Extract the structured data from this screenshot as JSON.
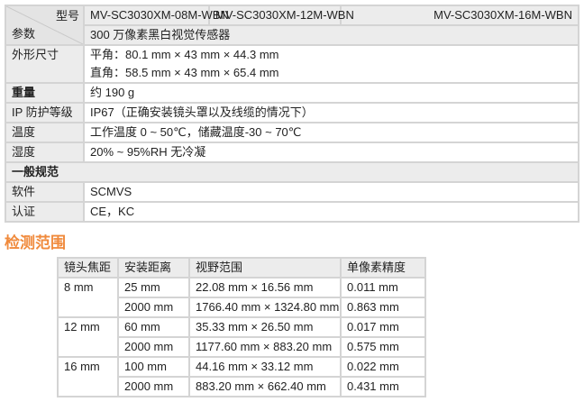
{
  "spec": {
    "param_label": "参数",
    "model_label": "型号",
    "models": [
      "MV-SC3030XM-08M-WBN",
      "MV-SC3030XM-12M-WBN",
      "MV-SC3030XM-16M-WBN"
    ],
    "sensor": "300 万像素黑白视觉传感器",
    "rows": [
      {
        "label": "外形尺寸",
        "lines": [
          "平角：80.1 mm × 43 mm × 44.3 mm",
          "直角：58.5 mm × 43 mm × 65.4 mm"
        ]
      },
      {
        "label": "重量",
        "value": "约 190 g"
      },
      {
        "label": "IP 防护等级",
        "value": "IP67（正确安装镜头罩以及线缆的情况下）"
      },
      {
        "label": "温度",
        "value": "工作温度 0 ~ 50℃，储藏温度-30 ~ 70℃"
      },
      {
        "label": "湿度",
        "value": "20% ~ 95%RH 无冷凝"
      }
    ],
    "section": "一般规范",
    "rows2": [
      {
        "label": "软件",
        "value": "SCMVS"
      },
      {
        "label": "认证",
        "value": "CE，KC"
      }
    ]
  },
  "range": {
    "title": "检测范围",
    "headers": [
      "镜头焦距",
      "安装距离",
      "视野范围",
      "单像素精度"
    ],
    "groups": [
      {
        "focal": "8 mm",
        "rows": [
          [
            "25 mm",
            "22.08 mm × 16.56 mm",
            "0.011 mm"
          ],
          [
            "2000 mm",
            "1766.40 mm × 1324.80 mm",
            "0.863 mm"
          ]
        ]
      },
      {
        "focal": "12 mm",
        "rows": [
          [
            "60 mm",
            "35.33 mm × 26.50 mm",
            "0.017 mm"
          ],
          [
            "2000 mm",
            "1177.60 mm × 883.20 mm",
            "0.575 mm"
          ]
        ]
      },
      {
        "focal": "16 mm",
        "rows": [
          [
            "100 mm",
            "44.16 mm × 33.12 mm",
            "0.022 mm"
          ],
          [
            "2000 mm",
            "883.20 mm × 662.40 mm",
            "0.431 mm"
          ]
        ]
      }
    ]
  },
  "colors": {
    "accent": "#f08a3c",
    "header_bg": "#ececec",
    "border": "#d4d4d4"
  }
}
